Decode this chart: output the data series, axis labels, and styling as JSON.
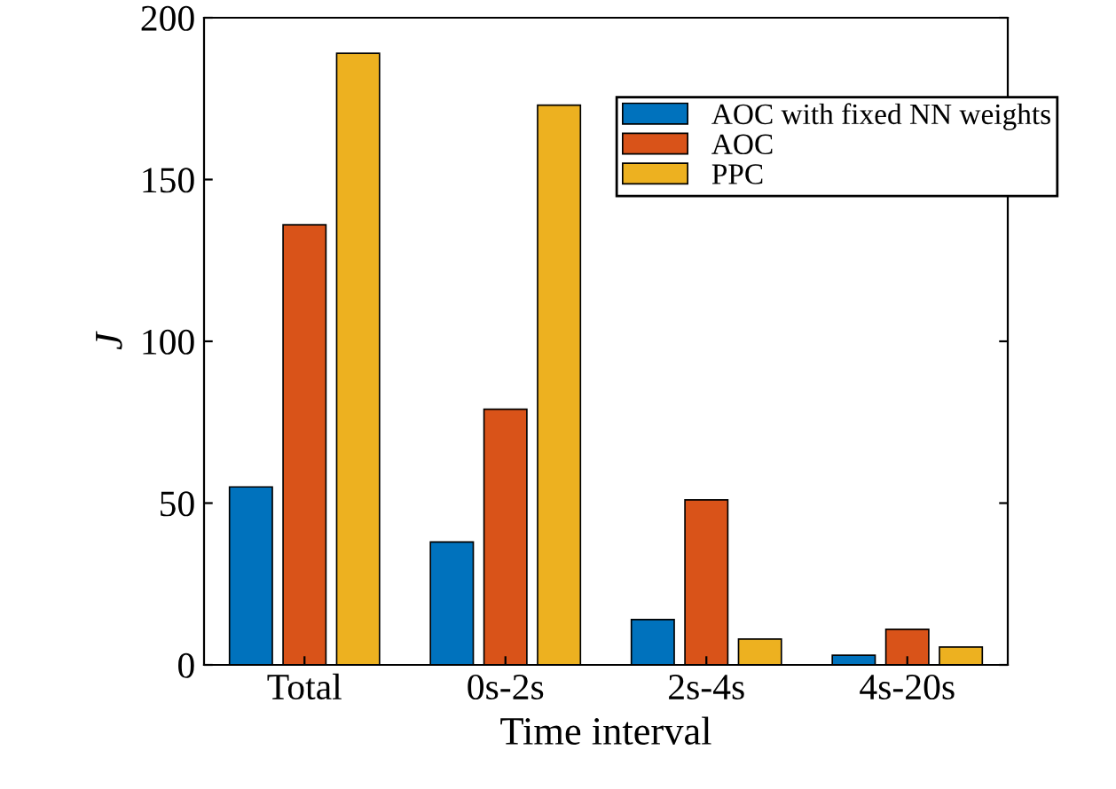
{
  "chart_data": {
    "type": "bar",
    "xlabel": "Time interval",
    "ylabel": "J",
    "categories": [
      "Total",
      "0s-2s",
      "2s-4s",
      "4s-20s"
    ],
    "series": [
      {
        "name": "AOC with fixed NN weights",
        "color": "#0072bd",
        "values": [
          55,
          38,
          14,
          3
        ]
      },
      {
        "name": "AOC",
        "color": "#d95319",
        "values": [
          136,
          79,
          51,
          11
        ]
      },
      {
        "name": "PPC",
        "color": "#edb120",
        "values": [
          189,
          173,
          8,
          5.5
        ]
      }
    ],
    "ylim": [
      0,
      200
    ],
    "yticks": [
      0,
      50,
      100,
      150,
      200
    ],
    "grid": false,
    "legend": "top right"
  }
}
